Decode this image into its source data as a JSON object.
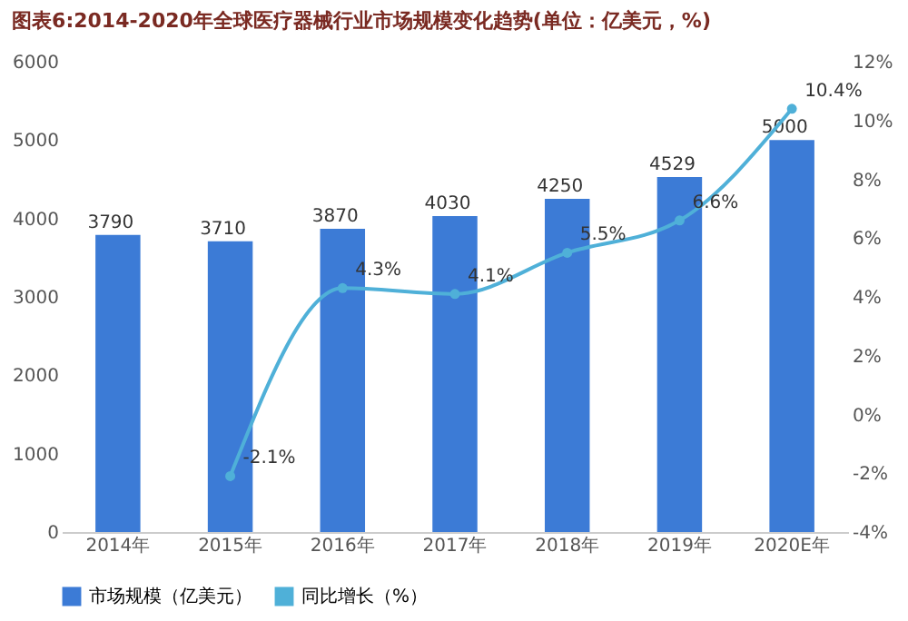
{
  "chart_data": {
    "type": "bar",
    "title": "图表6:2014-2020年全球医疗器械行业市场规模变化趋势(单位：亿美元，%)",
    "categories": [
      "2014年",
      "2015年",
      "2016年",
      "2017年",
      "2018年",
      "2019年",
      "2020E年"
    ],
    "series": [
      {
        "name": "市场规模（亿美元）",
        "color": "#3c7bd6",
        "values": [
          3790,
          3710,
          3870,
          4030,
          4250,
          4529,
          5000
        ],
        "value_labels": [
          "3790",
          "3710",
          "3870",
          "4030",
          "4250",
          "4529",
          "5000"
        ]
      },
      {
        "name": "同比增长（%）",
        "type": "line",
        "axis": "y2",
        "color": "#4fb0d8",
        "marker": "circle",
        "values": [
          null,
          -2.1,
          4.3,
          4.1,
          5.5,
          6.6,
          10.4
        ],
        "value_labels": [
          null,
          "-2.1%",
          "4.3%",
          "4.1%",
          "5.5%",
          "6.6%",
          "10.4%"
        ]
      }
    ],
    "ylim": [
      0,
      6000
    ],
    "yticks": [
      0,
      1000,
      2000,
      3000,
      4000,
      5000,
      6000
    ],
    "y2lim": [
      -4,
      12
    ],
    "y2ticks": [
      {
        "value": -4,
        "label": "-4%"
      },
      {
        "value": -2,
        "label": "-2%"
      },
      {
        "value": 0,
        "label": "0%"
      },
      {
        "value": 2,
        "label": "2%"
      },
      {
        "value": 4,
        "label": "4%"
      },
      {
        "value": 6,
        "label": "6%"
      },
      {
        "value": 8,
        "label": "8%"
      },
      {
        "value": 10,
        "label": "10%"
      },
      {
        "value": 12,
        "label": "12%"
      }
    ],
    "legend": "bottom"
  }
}
